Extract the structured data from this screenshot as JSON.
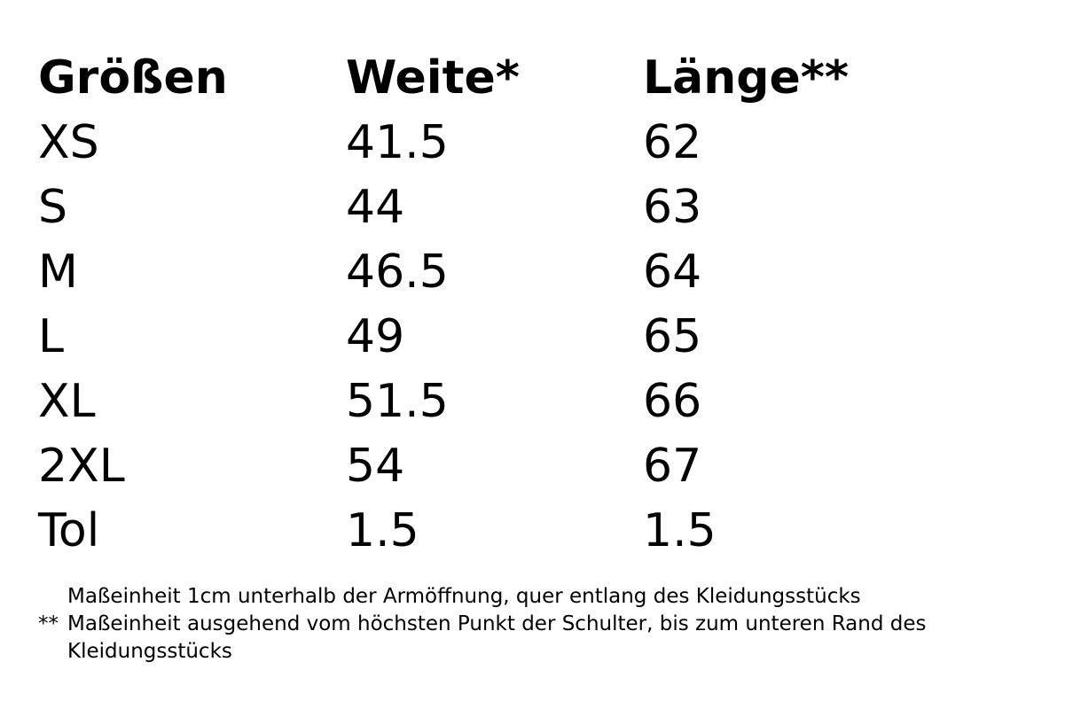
{
  "table": {
    "headers": [
      "Größen",
      "Weite*",
      "Länge**"
    ],
    "rows": [
      [
        "XS",
        "41.5",
        "62"
      ],
      [
        "S",
        "44",
        "63"
      ],
      [
        "M",
        "46.5",
        "64"
      ],
      [
        "L",
        "49",
        "65"
      ],
      [
        "XL",
        "51.5",
        "66"
      ],
      [
        "2XL",
        "54",
        "67"
      ],
      [
        "Tol",
        "1.5",
        "1.5"
      ]
    ]
  },
  "notes": [
    {
      "text": "Maßeinheit 1cm unterhalb der Armöffnung, quer entlang des Kleidungsstücks"
    },
    {
      "marker": "**",
      "text": "Maßeinheit ausgehend vom höchsten Punkt der Schulter, bis zum unteren Rand des Kleidungsstücks"
    }
  ]
}
